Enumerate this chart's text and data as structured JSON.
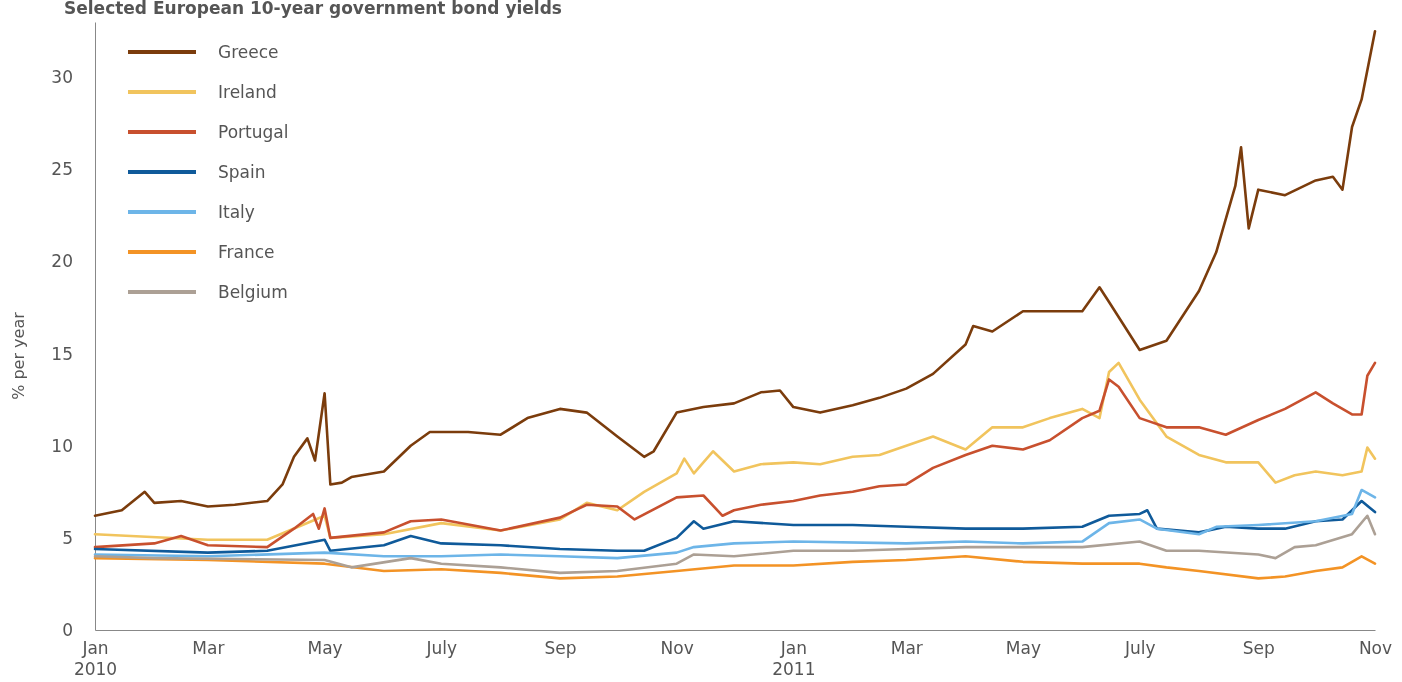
{
  "chart_data": {
    "type": "line",
    "title": "Selected European 10-year government bond yields",
    "ylabel": "% per year",
    "legend": "top left",
    "grid": false,
    "line_style": "solid",
    "marker": "none",
    "xlim": [
      "2010-01-01",
      "2011-11-01"
    ],
    "xticks": [
      {
        "value": "2010-01-01",
        "label": "Jan\n2010"
      },
      {
        "value": "2010-03-01",
        "label": "Mar"
      },
      {
        "value": "2010-05-01",
        "label": "May"
      },
      {
        "value": "2010-07-01",
        "label": "July"
      },
      {
        "value": "2010-09-01",
        "label": "Sep"
      },
      {
        "value": "2010-11-01",
        "label": "Nov"
      },
      {
        "value": "2011-01-01",
        "label": "Jan\n2011"
      },
      {
        "value": "2011-03-01",
        "label": "Mar"
      },
      {
        "value": "2011-05-01",
        "label": "May"
      },
      {
        "value": "2011-07-01",
        "label": "July"
      },
      {
        "value": "2011-09-01",
        "label": "Sep"
      },
      {
        "value": "2011-11-01",
        "label": "Nov"
      }
    ],
    "ylim": [
      0,
      33
    ],
    "yticks": [
      0,
      5,
      10,
      15,
      20,
      25,
      30
    ],
    "series": [
      {
        "name": "Greece",
        "color": "#7b3c0c",
        "x": [
          "2010-01-01",
          "2010-01-15",
          "2010-01-27",
          "2010-02-01",
          "2010-02-15",
          "2010-03-01",
          "2010-03-15",
          "2010-04-01",
          "2010-04-09",
          "2010-04-15",
          "2010-04-22",
          "2010-04-26",
          "2010-05-01",
          "2010-05-04",
          "2010-05-10",
          "2010-05-15",
          "2010-06-01",
          "2010-06-15",
          "2010-06-25",
          "2010-07-01",
          "2010-07-15",
          "2010-08-01",
          "2010-08-15",
          "2010-09-01",
          "2010-09-15",
          "2010-10-01",
          "2010-10-15",
          "2010-10-20",
          "2010-11-01",
          "2010-11-15",
          "2010-12-01",
          "2010-12-15",
          "2010-12-25",
          "2011-01-01",
          "2011-01-15",
          "2011-02-01",
          "2011-02-15",
          "2011-03-01",
          "2011-03-15",
          "2011-04-01",
          "2011-04-05",
          "2011-04-15",
          "2011-05-01",
          "2011-05-15",
          "2011-06-01",
          "2011-06-10",
          "2011-06-15",
          "2011-07-01",
          "2011-07-15",
          "2011-08-01",
          "2011-08-10",
          "2011-08-20",
          "2011-08-23",
          "2011-08-27",
          "2011-09-01",
          "2011-09-15",
          "2011-10-01",
          "2011-10-10",
          "2011-10-15",
          "2011-10-20",
          "2011-10-25",
          "2011-11-01"
        ],
        "values": [
          6.2,
          6.5,
          7.5,
          6.9,
          7.0,
          6.7,
          6.8,
          7.0,
          7.9,
          9.4,
          10.4,
          9.2,
          12.85,
          7.9,
          8.0,
          8.3,
          8.6,
          10.0,
          10.75,
          10.75,
          10.75,
          10.6,
          11.5,
          12.0,
          11.8,
          10.5,
          9.4,
          9.7,
          11.8,
          12.1,
          12.3,
          12.9,
          13.0,
          12.1,
          11.8,
          12.2,
          12.6,
          13.1,
          13.9,
          15.5,
          16.5,
          16.2,
          17.3,
          17.3,
          17.3,
          18.6,
          17.8,
          15.2,
          15.7,
          18.4,
          20.5,
          24.1,
          26.2,
          21.8,
          23.9,
          23.6,
          24.4,
          24.6,
          23.9,
          27.3,
          28.8,
          32.5
        ]
      },
      {
        "name": "Ireland",
        "color": "#f1c45d",
        "x": [
          "2010-01-01",
          "2010-03-01",
          "2010-04-01",
          "2010-05-01",
          "2010-05-04",
          "2010-06-01",
          "2010-07-01",
          "2010-08-01",
          "2010-09-01",
          "2010-09-15",
          "2010-10-01",
          "2010-10-15",
          "2010-11-01",
          "2010-11-05",
          "2010-11-10",
          "2010-11-20",
          "2010-12-01",
          "2010-12-15",
          "2011-01-01",
          "2011-01-15",
          "2011-02-01",
          "2011-02-15",
          "2011-03-01",
          "2011-03-15",
          "2011-04-01",
          "2011-04-15",
          "2011-05-01",
          "2011-05-15",
          "2011-06-01",
          "2011-06-10",
          "2011-06-15",
          "2011-06-20",
          "2011-07-01",
          "2011-07-15",
          "2011-08-01",
          "2011-08-15",
          "2011-09-01",
          "2011-09-10",
          "2011-09-20",
          "2011-10-01",
          "2011-10-15",
          "2011-10-25",
          "2011-10-28",
          "2011-11-01"
        ],
        "values": [
          5.2,
          4.9,
          4.9,
          6.2,
          5.0,
          5.2,
          5.8,
          5.4,
          6.0,
          6.9,
          6.5,
          7.5,
          8.5,
          9.3,
          8.5,
          9.7,
          8.6,
          9.0,
          9.1,
          9.0,
          9.4,
          9.5,
          10.0,
          10.5,
          9.8,
          11.0,
          11.0,
          11.5,
          12.0,
          11.5,
          14.0,
          14.5,
          12.5,
          10.5,
          9.5,
          9.1,
          9.1,
          8.0,
          8.4,
          8.6,
          8.4,
          8.6,
          9.9,
          9.3
        ]
      },
      {
        "name": "Portugal",
        "color": "#c8502e",
        "x": [
          "2010-01-01",
          "2010-02-01",
          "2010-02-15",
          "2010-03-01",
          "2010-04-01",
          "2010-04-15",
          "2010-04-25",
          "2010-04-28",
          "2010-05-01",
          "2010-05-04",
          "2010-06-01",
          "2010-06-15",
          "2010-07-01",
          "2010-08-01",
          "2010-09-01",
          "2010-09-15",
          "2010-10-01",
          "2010-10-10",
          "2010-11-01",
          "2010-11-15",
          "2010-11-25",
          "2010-12-01",
          "2010-12-15",
          "2011-01-01",
          "2011-01-15",
          "2011-02-01",
          "2011-02-15",
          "2011-03-01",
          "2011-03-15",
          "2011-04-01",
          "2011-04-15",
          "2011-05-01",
          "2011-05-15",
          "2011-06-01",
          "2011-06-10",
          "2011-06-15",
          "2011-06-20",
          "2011-07-01",
          "2011-07-15",
          "2011-08-01",
          "2011-08-15",
          "2011-09-01",
          "2011-09-15",
          "2011-10-01",
          "2011-10-10",
          "2011-10-20",
          "2011-10-25",
          "2011-10-28",
          "2011-11-01"
        ],
        "values": [
          4.5,
          4.7,
          5.1,
          4.6,
          4.5,
          5.5,
          6.3,
          5.5,
          6.6,
          5.0,
          5.3,
          5.9,
          6.0,
          5.4,
          6.1,
          6.8,
          6.7,
          6.0,
          7.2,
          7.3,
          6.2,
          6.5,
          6.8,
          7.0,
          7.3,
          7.5,
          7.8,
          7.9,
          8.8,
          9.5,
          10.0,
          9.8,
          10.3,
          11.5,
          11.9,
          13.6,
          13.2,
          11.5,
          11.0,
          11.0,
          10.6,
          11.4,
          12.0,
          12.9,
          12.3,
          11.7,
          11.7,
          13.8,
          14.5
        ]
      },
      {
        "name": "Spain",
        "color": "#0f5a9a",
        "x": [
          "2010-01-01",
          "2010-03-01",
          "2010-04-01",
          "2010-05-01",
          "2010-05-04",
          "2010-06-01",
          "2010-06-15",
          "2010-07-01",
          "2010-08-01",
          "2010-09-01",
          "2010-10-01",
          "2010-10-15",
          "2010-11-01",
          "2010-11-10",
          "2010-11-15",
          "2010-12-01",
          "2011-01-01",
          "2011-02-01",
          "2011-03-01",
          "2011-04-01",
          "2011-05-01",
          "2011-06-01",
          "2011-06-15",
          "2011-07-01",
          "2011-07-05",
          "2011-07-10",
          "2011-08-01",
          "2011-08-15",
          "2011-09-01",
          "2011-09-15",
          "2011-10-01",
          "2011-10-15",
          "2011-10-25",
          "2011-11-01"
        ],
        "values": [
          4.4,
          4.2,
          4.3,
          4.9,
          4.3,
          4.6,
          5.1,
          4.7,
          4.6,
          4.4,
          4.3,
          4.3,
          5.0,
          5.9,
          5.5,
          5.9,
          5.7,
          5.7,
          5.6,
          5.5,
          5.5,
          5.6,
          6.2,
          6.3,
          6.5,
          5.5,
          5.3,
          5.6,
          5.5,
          5.5,
          5.9,
          6.0,
          7.0,
          6.4
        ]
      },
      {
        "name": "Italy",
        "color": "#6db5e8",
        "x": [
          "2010-01-01",
          "2010-03-01",
          "2010-05-01",
          "2010-06-01",
          "2010-07-01",
          "2010-08-01",
          "2010-09-01",
          "2010-10-01",
          "2010-11-01",
          "2010-11-10",
          "2010-12-01",
          "2011-01-01",
          "2011-03-01",
          "2011-04-01",
          "2011-05-01",
          "2011-06-01",
          "2011-06-15",
          "2011-07-01",
          "2011-07-10",
          "2011-08-01",
          "2011-08-10",
          "2011-09-01",
          "2011-10-01",
          "2011-10-20",
          "2011-10-25",
          "2011-11-01"
        ],
        "values": [
          4.1,
          4.0,
          4.2,
          4.0,
          4.0,
          4.1,
          4.0,
          3.9,
          4.2,
          4.5,
          4.7,
          4.8,
          4.7,
          4.8,
          4.7,
          4.8,
          5.8,
          6.0,
          5.5,
          5.2,
          5.6,
          5.7,
          5.9,
          6.3,
          7.6,
          7.2
        ]
      },
      {
        "name": "France",
        "color": "#f39325",
        "x": [
          "2010-01-01",
          "2010-03-01",
          "2010-05-01",
          "2010-06-01",
          "2010-07-01",
          "2010-08-01",
          "2010-09-01",
          "2010-10-01",
          "2010-11-01",
          "2010-12-01",
          "2011-01-01",
          "2011-02-01",
          "2011-03-01",
          "2011-04-01",
          "2011-05-01",
          "2011-06-01",
          "2011-07-01",
          "2011-07-15",
          "2011-08-01",
          "2011-09-01",
          "2011-09-15",
          "2011-10-01",
          "2011-10-15",
          "2011-10-25",
          "2011-11-01"
        ],
        "values": [
          3.9,
          3.8,
          3.6,
          3.2,
          3.3,
          3.1,
          2.8,
          2.9,
          3.2,
          3.5,
          3.5,
          3.7,
          3.8,
          4.0,
          3.7,
          3.6,
          3.6,
          3.4,
          3.2,
          2.8,
          2.9,
          3.2,
          3.4,
          4.0,
          3.6
        ]
      },
      {
        "name": "Belgium",
        "color": "#aca095",
        "x": [
          "2010-01-01",
          "2010-02-01",
          "2010-05-01",
          "2010-05-15",
          "2010-06-15",
          "2010-07-01",
          "2010-08-01",
          "2010-09-01",
          "2010-10-01",
          "2010-11-01",
          "2010-11-10",
          "2010-12-01",
          "2011-01-01",
          "2011-02-01",
          "2011-03-01",
          "2011-04-01",
          "2011-05-01",
          "2011-06-01",
          "2011-07-01",
          "2011-07-15",
          "2011-08-01",
          "2011-09-01",
          "2011-09-10",
          "2011-09-20",
          "2011-10-01",
          "2011-10-20",
          "2011-10-28",
          "2011-11-01"
        ],
        "values": [
          4.0,
          3.9,
          3.8,
          3.4,
          3.9,
          3.6,
          3.4,
          3.1,
          3.2,
          3.6,
          4.1,
          4.0,
          4.3,
          4.3,
          4.4,
          4.5,
          4.5,
          4.5,
          4.8,
          4.3,
          4.3,
          4.1,
          3.9,
          4.5,
          4.6,
          5.2,
          6.2,
          5.2
        ]
      }
    ]
  }
}
